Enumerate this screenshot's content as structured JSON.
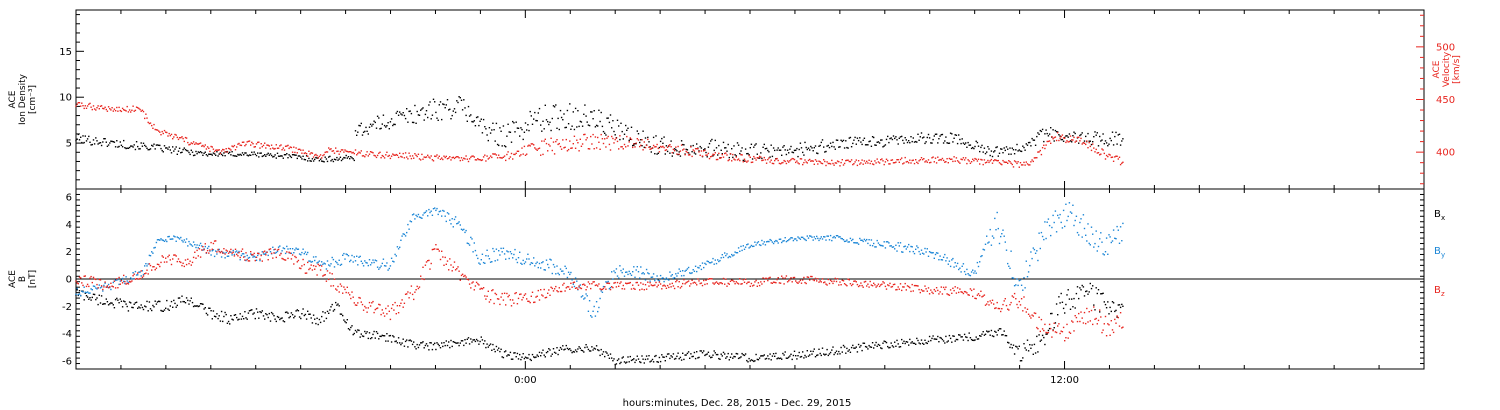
{
  "xlabel": "hours:minutes, Dec. 28, 2015 - Dec. 29, 2015",
  "colors": {
    "density": "#000000",
    "velocity": "#e8251f",
    "bx": "#000000",
    "by": "#1b86d6",
    "bz": "#e8251f"
  },
  "chart_data": [
    {
      "type": "scatter",
      "panel": "plasma",
      "x_unit": "hours since 2015-12-28 00:00 (ticks labeled 0:00 and 12:00)",
      "x_tick_labels": [
        "0:00",
        "12:00"
      ],
      "xlim": [
        -10,
        20
      ],
      "ylabel_lines": [
        "ACE",
        "Ion Density",
        "[cm⁻³]"
      ],
      "ylim": [
        0,
        19.5
      ],
      "yticks": [
        5,
        10,
        15
      ],
      "y2label_lines": [
        "ACE",
        "Velocity",
        "[km/s]"
      ],
      "y2lim": [
        365,
        535
      ],
      "y2ticks": [
        400,
        450,
        500
      ],
      "series": [
        {
          "key": "density",
          "axis": "left",
          "x": [
            -10,
            -9.2,
            -8.4,
            -7.8,
            -7,
            -6.2,
            -5.3,
            -4.6,
            -3.8,
            -4.2,
            -4,
            -3.6,
            -3,
            -2.2,
            -1.4,
            -0.8,
            -0.3,
            0.2,
            1,
            1.6,
            2.4,
            3.2,
            4,
            4.8,
            5.6,
            6.4,
            7.2,
            8,
            8.8,
            9.6,
            10.4,
            11,
            11.6,
            12.2,
            12.8,
            13.3
          ],
          "y": [
            5.5,
            5,
            4.6,
            4.2,
            3.8,
            3.8,
            3.6,
            3.2,
            3.4,
            3.4,
            6.5,
            6.5,
            7.5,
            8.5,
            9,
            6,
            6,
            7.5,
            8,
            7.5,
            5.5,
            4.5,
            4.5,
            4,
            4,
            4.5,
            5,
            5.2,
            5.5,
            5.5,
            4,
            4.5,
            6,
            5.5,
            5.5,
            5.5
          ],
          "spread": [
            0.5,
            0.5,
            0.4,
            0.4,
            0.3,
            0.3,
            0.3,
            0.3,
            0.3,
            0.3,
            0.6,
            0.8,
            1,
            1.2,
            1.2,
            1.2,
            1.5,
            1.5,
            1.5,
            1.5,
            1.2,
            1,
            1,
            1,
            0.8,
            0.8,
            0.6,
            0.6,
            0.6,
            0.6,
            0.5,
            0.6,
            0.8,
            0.8,
            0.8,
            0.8
          ]
        },
        {
          "key": "velocity",
          "axis": "right",
          "x": [
            -10,
            -9,
            -8.6,
            -8.2,
            -7.5,
            -6.8,
            -6.2,
            -5.2,
            -4.5,
            -4.4,
            -3.5,
            -2.5,
            -1.5,
            -0.5,
            0.5,
            1.5,
            2.5,
            3.5,
            4.5,
            5.5,
            6.5,
            7.5,
            8.5,
            9.5,
            10.5,
            11.2,
            11.8,
            12.4,
            13,
            13.3
          ],
          "y": [
            445,
            440,
            442,
            420,
            410,
            400,
            408,
            403,
            395,
            402,
            398,
            396,
            393,
            395,
            405,
            410,
            408,
            402,
            395,
            392,
            390,
            390,
            392,
            393,
            390,
            388,
            415,
            410,
            395,
            390
          ],
          "spread": [
            3,
            3,
            3,
            3,
            3,
            3,
            3,
            3,
            3,
            3,
            3,
            3,
            3,
            4,
            8,
            8,
            6,
            5,
            4,
            3,
            3,
            3,
            3,
            3,
            3,
            3,
            4,
            4,
            4,
            4
          ]
        }
      ]
    },
    {
      "type": "scatter",
      "panel": "imf",
      "x_unit": "hours since 2015-12-28 00:00 (ticks labeled 0:00 and 12:00)",
      "x_tick_labels": [
        "0:00",
        "12:00"
      ],
      "xlim": [
        -10,
        20
      ],
      "ylabel_lines": [
        "ACE",
        "B",
        "[nT]"
      ],
      "ylim": [
        -6.6,
        6.6
      ],
      "yticks": [
        -6,
        -4,
        -2,
        0,
        2,
        4,
        6
      ],
      "zero_line": 0,
      "legend": [
        "Bx",
        "By",
        "Bz"
      ],
      "series": [
        {
          "key": "bx",
          "label": "Bx",
          "x": [
            -10,
            -9.5,
            -8.8,
            -8,
            -7.5,
            -7,
            -6.5,
            -6,
            -5.5,
            -5,
            -4.6,
            -4.2,
            -3.8,
            -3.2,
            -2.5,
            -2,
            -1.5,
            -1,
            -0.5,
            0,
            0.8,
            1.5,
            2,
            3,
            4,
            5,
            6,
            7,
            8,
            9,
            10,
            10.6,
            11,
            11.5,
            12,
            12.5,
            13,
            13.3
          ],
          "y": [
            -1,
            -1.5,
            -2,
            -2,
            -1.5,
            -2.5,
            -3,
            -2.5,
            -3,
            -2.5,
            -3,
            -2,
            -4,
            -4.2,
            -4.8,
            -5,
            -4.6,
            -4.5,
            -5.5,
            -5.8,
            -5.2,
            -5,
            -6,
            -5.8,
            -5.5,
            -5.8,
            -5.6,
            -5.2,
            -4.8,
            -4.5,
            -4.2,
            -3.8,
            -5.5,
            -4.5,
            -1.5,
            -1,
            -2,
            -2.5
          ],
          "spread": [
            0.4,
            0.4,
            0.4,
            0.4,
            0.4,
            0.4,
            0.4,
            0.4,
            0.4,
            0.4,
            0.4,
            0.4,
            0.3,
            0.3,
            0.3,
            0.3,
            0.3,
            0.3,
            0.3,
            0.3,
            0.3,
            0.3,
            0.3,
            0.3,
            0.3,
            0.3,
            0.3,
            0.3,
            0.3,
            0.3,
            0.3,
            0.3,
            0.6,
            0.8,
            1,
            1,
            0.8,
            0.6
          ]
        },
        {
          "key": "by",
          "label": "By",
          "x": [
            -10,
            -9.2,
            -8.5,
            -8.2,
            -7.8,
            -7,
            -6.5,
            -6,
            -5.5,
            -5,
            -4.5,
            -4,
            -3.5,
            -3,
            -2.5,
            -2,
            -1.5,
            -1,
            -0.5,
            0,
            0.5,
            1,
            1.5,
            2,
            2.5,
            3,
            3.5,
            4,
            5,
            6,
            7,
            8,
            9,
            10,
            10.5,
            11,
            11.5,
            12,
            12.5,
            13,
            13.3
          ],
          "y": [
            -1,
            -0.5,
            0.5,
            2.8,
            3,
            2,
            1.8,
            1.5,
            2.2,
            2,
            1,
            1.5,
            1.2,
            1,
            4.5,
            5,
            4,
            1.5,
            2,
            1.5,
            1,
            0.5,
            -2.5,
            0.5,
            0.5,
            0,
            0.5,
            1,
            2.5,
            3,
            3,
            2.5,
            2,
            0.5,
            4,
            -0.5,
            3,
            5,
            3.5,
            2.5,
            3.5
          ],
          "spread": [
            0.3,
            0.3,
            0.3,
            0.2,
            0.2,
            0.4,
            0.3,
            0.3,
            0.3,
            0.3,
            0.4,
            0.4,
            0.4,
            0.4,
            0.3,
            0.3,
            0.5,
            0.5,
            0.5,
            0.5,
            0.5,
            0.5,
            0.6,
            0.5,
            0.5,
            0.3,
            0.3,
            0.3,
            0.2,
            0.2,
            0.2,
            0.3,
            0.4,
            0.5,
            1,
            1,
            1.2,
            1.2,
            1,
            1,
            0.6
          ]
        },
        {
          "key": "bz",
          "label": "Bz",
          "x": [
            -10,
            -9.2,
            -8.5,
            -8,
            -7.5,
            -7,
            -6.5,
            -6,
            -5.5,
            -5,
            -4.5,
            -4,
            -3.5,
            -3,
            -2.5,
            -2,
            -1.5,
            -1,
            -0.5,
            0,
            0.5,
            1,
            1.5,
            2,
            3,
            4,
            5,
            6,
            7,
            8,
            9,
            10,
            10.5,
            11,
            11.5,
            12,
            12.5,
            13,
            13.3
          ],
          "y": [
            0,
            -0.5,
            0.5,
            1.5,
            1.2,
            2.5,
            2,
            1.5,
            2,
            1,
            0.5,
            -1,
            -2,
            -2.5,
            -1,
            2,
            0.5,
            -1,
            -1.5,
            -1.5,
            -1,
            -0.5,
            -0.5,
            -0.5,
            -0.5,
            -0.2,
            -0.3,
            0,
            -0.2,
            -0.5,
            -0.8,
            -1,
            -2,
            -1.5,
            -3.5,
            -4,
            -2.5,
            -3.5,
            -3
          ],
          "spread": [
            0.4,
            0.4,
            0.4,
            0.4,
            0.4,
            0.5,
            0.4,
            0.4,
            0.4,
            0.5,
            0.5,
            0.5,
            0.5,
            0.5,
            0.6,
            0.6,
            0.6,
            0.5,
            0.5,
            0.5,
            0.4,
            0.3,
            0.3,
            0.3,
            0.3,
            0.3,
            0.3,
            0.3,
            0.3,
            0.3,
            0.3,
            0.4,
            0.5,
            0.6,
            0.6,
            0.6,
            0.8,
            0.8,
            0.6
          ]
        }
      ]
    }
  ]
}
